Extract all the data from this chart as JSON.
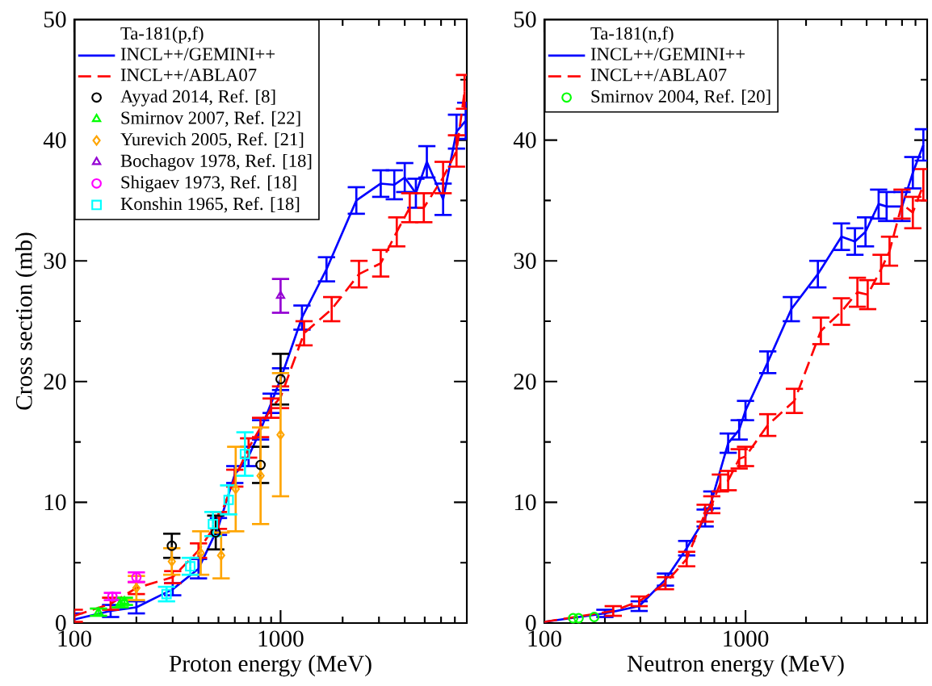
{
  "chart_data": [
    {
      "type": "line",
      "xlabel": "Proton energy (MeV)",
      "ylabel": "Cross section (mb)",
      "legend_title": "Ta-181(p,f)",
      "log": "x",
      "xlim": [
        100,
        8000
      ],
      "xticks": [
        100,
        1000
      ],
      "ylim": [
        0,
        50
      ],
      "yticks": [
        0,
        10,
        20,
        30,
        40,
        50
      ],
      "grid": false,
      "legend": "top left",
      "series": [
        {
          "name": "INCL++/GEMINI++",
          "line_style": "solid",
          "marker": "none",
          "color": "#0000ff",
          "x": [
            100,
            150,
            200,
            300,
            400,
            500,
            600,
            700,
            800,
            900,
            1000,
            1270,
            1670,
            2330,
            3060,
            3560,
            4000,
            4530,
            5120,
            6140,
            7130,
            7900
          ],
          "values": [
            0.3,
            1.0,
            1.3,
            2.8,
            4.5,
            8.0,
            12.3,
            13.8,
            16.0,
            18.2,
            20.2,
            25.3,
            29.3,
            35.0,
            36.4,
            36.3,
            36.9,
            35.6,
            38.2,
            35.1,
            40.7,
            41.6
          ],
          "errors": [
            0.5,
            0.5,
            0.5,
            0.5,
            0.8,
            0.7,
            0.7,
            0.8,
            0.8,
            0.8,
            0.9,
            1.0,
            1.0,
            1.1,
            1.1,
            1.2,
            1.2,
            1.2,
            1.3,
            1.3,
            1.4,
            1.5
          ]
        },
        {
          "name": "INCL++/ABLA07",
          "line_style": "dashed",
          "marker": "none",
          "color": "#ff0000",
          "x": [
            100,
            150,
            200,
            300,
            400,
            500,
            600,
            700,
            800,
            900,
            1000,
            1300,
            1770,
            2400,
            3060,
            3660,
            4230,
            4950,
            6140,
            7130,
            7800
          ],
          "values": [
            0.6,
            1.6,
            2.9,
            3.8,
            6.0,
            8.5,
            12.0,
            14.5,
            16.2,
            17.8,
            18.7,
            24.0,
            26.0,
            28.9,
            29.8,
            32.4,
            34.4,
            34.4,
            36.9,
            39.1,
            44.0
          ],
          "errors": [
            0.5,
            0.5,
            0.5,
            0.5,
            0.6,
            0.7,
            0.7,
            0.8,
            0.8,
            0.8,
            0.9,
            1.0,
            1.0,
            1.1,
            1.1,
            1.2,
            1.2,
            1.2,
            1.3,
            1.3,
            1.4
          ]
        },
        {
          "name": "Ayyad 2014, Ref. [8]",
          "type": "scatter",
          "marker": "circle",
          "color": "#000000",
          "x": [
            297,
            485,
            800,
            1000
          ],
          "values": [
            6.4,
            7.5,
            13.1,
            20.2
          ],
          "errors": [
            1.0,
            1.4,
            1.5,
            2.1
          ]
        },
        {
          "name": "Smirnov 2007, Ref. [22]",
          "type": "scatter",
          "marker": "triangle",
          "color": "#00ff00",
          "x": [
            131,
            167,
            175
          ],
          "values": [
            0.9,
            1.6,
            1.8
          ],
          "errors": [
            0.3,
            0.3,
            0.3
          ]
        },
        {
          "name": "Yurevich 2005, Ref. [21]",
          "type": "scatter",
          "marker": "diamond",
          "color": "#ffa500",
          "x": [
            200,
            297,
            410,
            515,
            606,
            800,
            1000
          ],
          "values": [
            2.9,
            5.1,
            5.8,
            5.6,
            11.1,
            12.2,
            15.6
          ],
          "errors": [
            1.0,
            1.1,
            1.8,
            1.9,
            3.5,
            4.0,
            5.1
          ]
        },
        {
          "name": "Bochagov 1978, Ref. [18]",
          "type": "scatter",
          "marker": "triangle",
          "color": "#9400d3",
          "x": [
            1000
          ],
          "values": [
            27.1
          ],
          "errors": [
            1.4
          ]
        },
        {
          "name": "Shigaev 1973, Ref. [18]",
          "type": "scatter",
          "marker": "circle",
          "color": "#ff00ff",
          "x": [
            153,
            200
          ],
          "values": [
            2.2,
            3.8
          ],
          "errors": [
            0.3,
            0.4
          ]
        },
        {
          "name": "Konshin 1965, Ref. [18]",
          "type": "scatter",
          "marker": "square",
          "color": "#00ffff",
          "x": [
            280,
            365,
            470,
            560,
            672
          ],
          "values": [
            2.4,
            4.7,
            8.2,
            10.2,
            14.0
          ],
          "errors": [
            0.6,
            0.7,
            1.0,
            1.2,
            1.8
          ]
        }
      ]
    },
    {
      "type": "line",
      "xlabel": "Neutron energy (MeV)",
      "legend_title": "Ta-181(n,f)",
      "log": "x",
      "xlim": [
        100,
        8000
      ],
      "xticks": [
        100,
        1000
      ],
      "ylim": [
        0,
        50
      ],
      "yticks": [
        0,
        10,
        20,
        30,
        40,
        50
      ],
      "grid": false,
      "legend": "top left",
      "series": [
        {
          "name": "INCL++/GEMINI++",
          "line_style": "solid",
          "marker": "none",
          "color": "#0000ff",
          "x": [
            100,
            200,
            296,
            400,
            510,
            630,
            680,
            820,
            930,
            1000,
            1290,
            1690,
            2290,
            3000,
            3500,
            3950,
            4590,
            5030,
            6000,
            6790,
            7660
          ],
          "values": [
            0.1,
            0.8,
            1.4,
            3.6,
            6.2,
            8.7,
            10.2,
            14.9,
            16.0,
            17.6,
            21.6,
            26.0,
            28.9,
            32.0,
            31.6,
            32.4,
            34.7,
            34.5,
            34.5,
            37.3,
            39.6
          ],
          "errors": [
            null,
            0.3,
            0.4,
            0.5,
            0.6,
            0.7,
            0.7,
            0.8,
            0.8,
            0.8,
            0.9,
            1.0,
            1.1,
            1.1,
            1.1,
            1.2,
            1.2,
            1.2,
            1.2,
            1.3,
            1.3
          ]
        },
        {
          "name": "INCL++/ABLA07",
          "line_style": "dashed",
          "marker": "none",
          "color": "#ff0000",
          "x": [
            100,
            220,
            296,
            400,
            510,
            630,
            680,
            750,
            820,
            930,
            1000,
            1290,
            1750,
            2370,
            3000,
            3600,
            4050,
            4720,
            5200,
            6000,
            6790,
            7660
          ],
          "values": [
            0.1,
            1.0,
            1.8,
            3.3,
            5.3,
            9.1,
            9.8,
            11.6,
            11.8,
            13.6,
            13.8,
            16.4,
            18.4,
            24.2,
            25.8,
            27.4,
            27.2,
            29.3,
            30.8,
            34.7,
            34.0,
            36.3
          ],
          "errors": [
            null,
            0.4,
            0.4,
            0.5,
            0.6,
            0.7,
            0.7,
            0.7,
            0.8,
            0.8,
            0.8,
            0.9,
            1.0,
            1.1,
            1.1,
            1.2,
            1.2,
            1.2,
            1.2,
            1.2,
            1.3,
            1.3
          ]
        },
        {
          "name": "Smirnov 2004,  Ref. [20]",
          "type": "scatter",
          "marker": "circle",
          "color": "#00ff00",
          "x": [
            139,
            148,
            177
          ],
          "values": [
            0.4,
            0.4,
            0.5
          ]
        }
      ]
    }
  ]
}
